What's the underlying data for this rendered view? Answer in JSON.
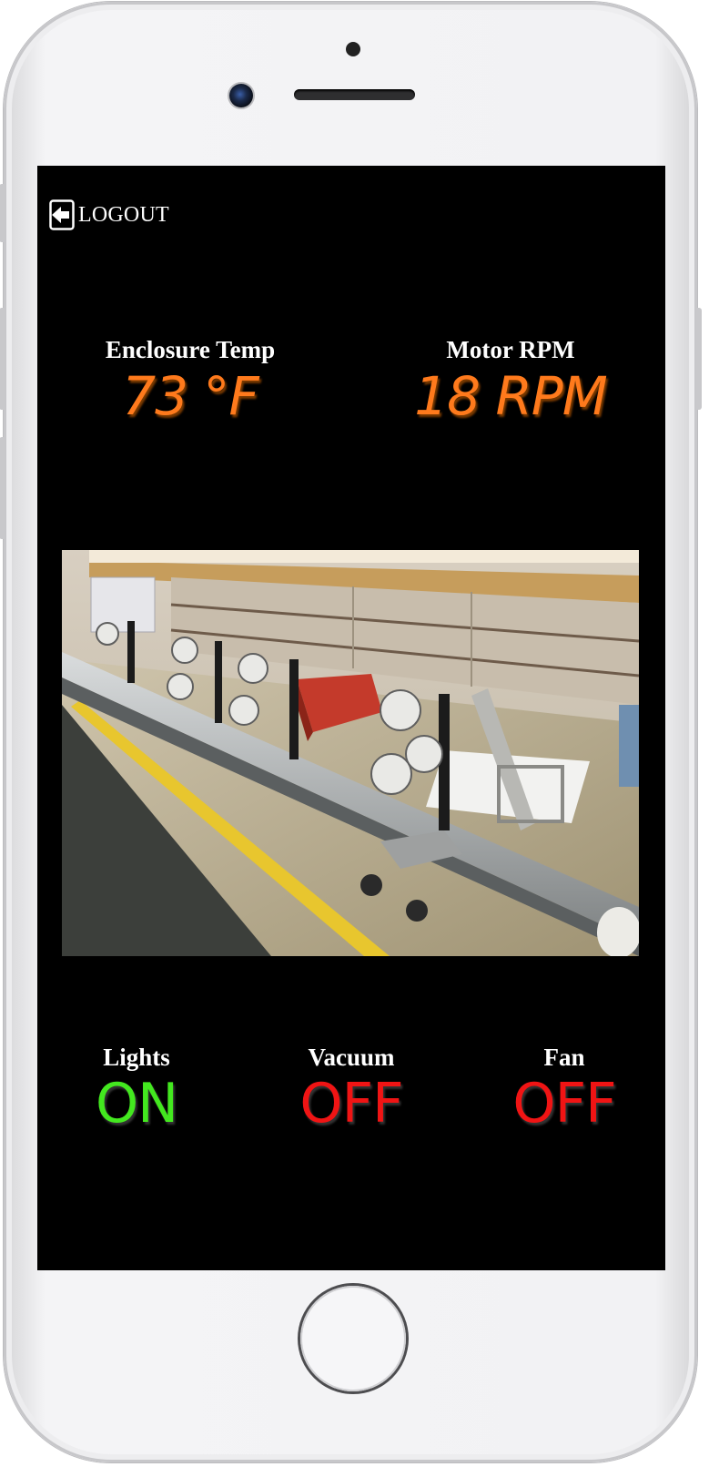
{
  "header": {
    "logout_label": "LOGOUT",
    "logout_icon": "logout-arrow-icon"
  },
  "stats": {
    "temp_label": "Enclosure Temp",
    "temp_value": "73 °F",
    "rpm_label": "Motor RPM",
    "rpm_value": "18 RPM",
    "value_color": "#ff7a1c"
  },
  "camera": {
    "description_icon": "workbench-camera-image"
  },
  "toggles": {
    "lights": {
      "label": "Lights",
      "state": "ON",
      "color": "#43e81f"
    },
    "vacuum": {
      "label": "Vacuum",
      "state": "OFF",
      "color": "#f01414"
    },
    "fan": {
      "label": "Fan",
      "state": "OFF",
      "color": "#f01414"
    }
  }
}
